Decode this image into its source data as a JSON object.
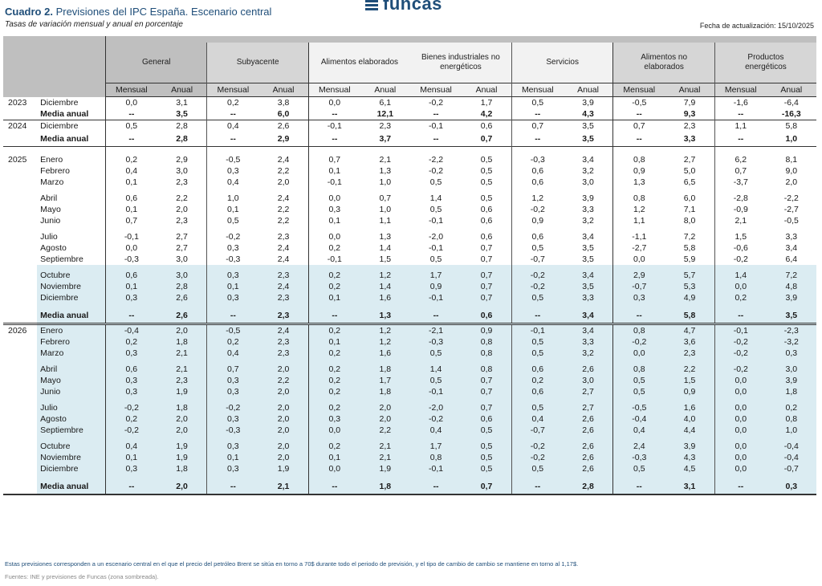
{
  "header": {
    "title_bold": "Cuadro 2.",
    "title_rest": " Previsiones del IPC España. Escenario central",
    "subtitle": "Tasas de variación mensual y anual  en porcentaje",
    "logo_text": "funcas",
    "update_label": "Fecha de actualización: 15/10/2025"
  },
  "colors": {
    "brand": "#1f4e79",
    "forecast_shade": "#dbecf2",
    "header_dark": "#bfbfbf",
    "header_mid": "#d6d6d6",
    "header_light": "#f2f2f2"
  },
  "columns": {
    "groups": [
      {
        "label": "General"
      },
      {
        "label": "Subyacente"
      },
      {
        "label": "Alimentos elaborados"
      },
      {
        "label": "Bienes industriales no energéticos"
      },
      {
        "label": "Servicios"
      },
      {
        "label": "Alimentos no elaborados"
      },
      {
        "label": "Productos energéticos"
      }
    ],
    "sub": [
      "Mensual",
      "Anual"
    ]
  },
  "rows": [
    {
      "year": "2023",
      "month": "Diciembre",
      "v": [
        "0,0",
        "3,1",
        "0,2",
        "3,8",
        "0,0",
        "6,1",
        "-0,2",
        "1,7",
        "0,5",
        "3,9",
        "-0,5",
        "7,9",
        "-1,6",
        "-6,4"
      ]
    },
    {
      "year": "",
      "month": "Media anual",
      "bold": true,
      "v": [
        "--",
        "3,5",
        "--",
        "6,0",
        "--",
        "12,1",
        "--",
        "4,2",
        "--",
        "4,3",
        "--",
        "9,3",
        "--",
        "-16,3"
      ]
    },
    {
      "year": "2024",
      "month": "Diciembre",
      "v": [
        "0,5",
        "2,8",
        "0,4",
        "2,6",
        "-0,1",
        "2,3",
        "-0,1",
        "0,6",
        "0,7",
        "3,5",
        "0,7",
        "2,3",
        "1,1",
        "5,8"
      ]
    },
    {
      "year": "",
      "month": "Media anual",
      "bold": true,
      "v": [
        "--",
        "2,8",
        "--",
        "2,9",
        "--",
        "3,7",
        "--",
        "0,7",
        "--",
        "3,5",
        "--",
        "3,3",
        "--",
        "1,0"
      ]
    },
    {
      "year": "2025",
      "month": "Enero",
      "v": [
        "0,2",
        "2,9",
        "-0,5",
        "2,4",
        "0,7",
        "2,1",
        "-2,2",
        "0,5",
        "-0,3",
        "3,4",
        "0,8",
        "2,7",
        "6,2",
        "8,1"
      ]
    },
    {
      "year": "",
      "month": "Febrero",
      "v": [
        "0,4",
        "3,0",
        "0,3",
        "2,2",
        "0,1",
        "1,3",
        "-0,2",
        "0,5",
        "0,6",
        "3,2",
        "0,9",
        "5,0",
        "0,7",
        "9,0"
      ]
    },
    {
      "year": "",
      "month": "Marzo",
      "v": [
        "0,1",
        "2,3",
        "0,4",
        "2,0",
        "-0,1",
        "1,0",
        "0,5",
        "0,5",
        "0,6",
        "3,0",
        "1,3",
        "6,5",
        "-3,7",
        "2,0"
      ]
    },
    {
      "year": "",
      "month": "Abril",
      "v": [
        "0,6",
        "2,2",
        "1,0",
        "2,4",
        "0,0",
        "0,7",
        "1,4",
        "0,5",
        "1,2",
        "3,9",
        "0,8",
        "6,0",
        "-2,8",
        "-2,2"
      ]
    },
    {
      "year": "",
      "month": "Mayo",
      "v": [
        "0,1",
        "2,0",
        "0,1",
        "2,2",
        "0,3",
        "1,0",
        "0,5",
        "0,6",
        "-0,2",
        "3,3",
        "1,2",
        "7,1",
        "-0,9",
        "-2,7"
      ]
    },
    {
      "year": "",
      "month": "Junio",
      "v": [
        "0,7",
        "2,3",
        "0,5",
        "2,2",
        "0,1",
        "1,1",
        "-0,1",
        "0,6",
        "0,9",
        "3,2",
        "1,1",
        "8,0",
        "2,1",
        "-0,5"
      ]
    },
    {
      "year": "",
      "month": "Julio",
      "v": [
        "-0,1",
        "2,7",
        "-0,2",
        "2,3",
        "0,0",
        "1,3",
        "-2,0",
        "0,6",
        "0,6",
        "3,4",
        "-1,1",
        "7,2",
        "1,5",
        "3,3"
      ]
    },
    {
      "year": "",
      "month": "Agosto",
      "v": [
        "0,0",
        "2,7",
        "0,3",
        "2,4",
        "0,2",
        "1,4",
        "-0,1",
        "0,7",
        "0,5",
        "3,5",
        "-2,7",
        "5,8",
        "-0,6",
        "3,4"
      ]
    },
    {
      "year": "",
      "month": "Septiembre",
      "v": [
        "-0,3",
        "3,0",
        "-0,3",
        "2,4",
        "-0,1",
        "1,5",
        "0,5",
        "0,7",
        "-0,7",
        "3,5",
        "0,0",
        "5,9",
        "-0,2",
        "6,4"
      ]
    },
    {
      "year": "",
      "month": "Octubre",
      "v": [
        "0,6",
        "3,0",
        "0,3",
        "2,3",
        "0,2",
        "1,2",
        "1,7",
        "0,7",
        "-0,2",
        "3,4",
        "2,9",
        "5,7",
        "1,4",
        "7,2"
      ]
    },
    {
      "year": "",
      "month": "Noviembre",
      "v": [
        "0,1",
        "2,8",
        "0,1",
        "2,4",
        "0,2",
        "1,4",
        "0,9",
        "0,7",
        "-0,2",
        "3,5",
        "-0,7",
        "5,3",
        "0,0",
        "4,8"
      ]
    },
    {
      "year": "",
      "month": "Diciembre",
      "v": [
        "0,3",
        "2,6",
        "0,3",
        "2,3",
        "0,1",
        "1,6",
        "-0,1",
        "0,7",
        "0,5",
        "3,3",
        "0,3",
        "4,9",
        "0,2",
        "3,9"
      ]
    },
    {
      "year": "",
      "month": "Media anual",
      "bold": true,
      "v": [
        "--",
        "2,6",
        "--",
        "2,3",
        "--",
        "1,3",
        "--",
        "0,6",
        "--",
        "3,4",
        "--",
        "5,8",
        "--",
        "3,5"
      ]
    },
    {
      "year": "2026",
      "month": "Enero",
      "v": [
        "-0,4",
        "2,0",
        "-0,5",
        "2,4",
        "0,2",
        "1,2",
        "-2,1",
        "0,9",
        "-0,1",
        "3,4",
        "0,8",
        "4,7",
        "-0,1",
        "-2,3"
      ]
    },
    {
      "year": "",
      "month": "Febrero",
      "v": [
        "0,2",
        "1,8",
        "0,2",
        "2,3",
        "0,1",
        "1,2",
        "-0,3",
        "0,8",
        "0,5",
        "3,3",
        "-0,2",
        "3,6",
        "-0,2",
        "-3,2"
      ]
    },
    {
      "year": "",
      "month": "Marzo",
      "v": [
        "0,3",
        "2,1",
        "0,4",
        "2,3",
        "0,2",
        "1,6",
        "0,5",
        "0,8",
        "0,5",
        "3,2",
        "0,0",
        "2,3",
        "-0,2",
        "0,3"
      ]
    },
    {
      "year": "",
      "month": "Abril",
      "v": [
        "0,6",
        "2,1",
        "0,7",
        "2,0",
        "0,2",
        "1,8",
        "1,4",
        "0,8",
        "0,6",
        "2,6",
        "0,8",
        "2,2",
        "-0,2",
        "3,0"
      ]
    },
    {
      "year": "",
      "month": "Mayo",
      "v": [
        "0,3",
        "2,3",
        "0,3",
        "2,2",
        "0,2",
        "1,7",
        "0,5",
        "0,7",
        "0,2",
        "3,0",
        "0,5",
        "1,5",
        "0,0",
        "3,9"
      ]
    },
    {
      "year": "",
      "month": "Junio",
      "v": [
        "0,3",
        "1,9",
        "0,3",
        "2,0",
        "0,2",
        "1,8",
        "-0,1",
        "0,7",
        "0,6",
        "2,7",
        "0,5",
        "0,9",
        "0,0",
        "1,8"
      ]
    },
    {
      "year": "",
      "month": "Julio",
      "v": [
        "-0,2",
        "1,8",
        "-0,2",
        "2,0",
        "0,2",
        "2,0",
        "-2,0",
        "0,7",
        "0,5",
        "2,7",
        "-0,5",
        "1,6",
        "0,0",
        "0,2"
      ]
    },
    {
      "year": "",
      "month": "Agosto",
      "v": [
        "0,2",
        "2,0",
        "0,3",
        "2,0",
        "0,3",
        "2,0",
        "-0,2",
        "0,6",
        "0,4",
        "2,6",
        "-0,4",
        "4,0",
        "0,0",
        "0,8"
      ]
    },
    {
      "year": "",
      "month": "Septiembre",
      "v": [
        "-0,2",
        "2,0",
        "-0,3",
        "2,0",
        "0,0",
        "2,2",
        "0,4",
        "0,5",
        "-0,7",
        "2,6",
        "0,4",
        "4,4",
        "0,0",
        "1,0"
      ]
    },
    {
      "year": "",
      "month": "Octubre",
      "v": [
        "0,4",
        "1,9",
        "0,3",
        "2,0",
        "0,2",
        "2,1",
        "1,7",
        "0,5",
        "-0,2",
        "2,6",
        "2,4",
        "3,9",
        "0,0",
        "-0,4"
      ]
    },
    {
      "year": "",
      "month": "Noviembre",
      "v": [
        "0,1",
        "1,9",
        "0,1",
        "2,0",
        "0,1",
        "2,1",
        "0,8",
        "0,5",
        "-0,2",
        "2,6",
        "-0,3",
        "4,3",
        "0,0",
        "-0,4"
      ]
    },
    {
      "year": "",
      "month": "Diciembre",
      "v": [
        "0,3",
        "1,8",
        "0,3",
        "1,9",
        "0,0",
        "1,9",
        "-0,1",
        "0,5",
        "0,5",
        "2,6",
        "0,5",
        "4,5",
        "0,0",
        "-0,7"
      ]
    },
    {
      "year": "",
      "month": "Media anual",
      "bold": true,
      "v": [
        "--",
        "2,0",
        "--",
        "2,1",
        "--",
        "1,8",
        "--",
        "0,7",
        "--",
        "2,8",
        "--",
        "3,1",
        "--",
        "0,3"
      ]
    }
  ],
  "footer": {
    "note": "Estas previsiones corresponden a un escenario central en el que el precio del petróleo Brent se sitúa en torno a 70$ durante todo el periodo de previsión, y el tipo de cambio de cambio se mantiene en torno al 1,17$.",
    "sources": "Fuentes: INE y previsiones de Funcas (zona sombreada)."
  }
}
